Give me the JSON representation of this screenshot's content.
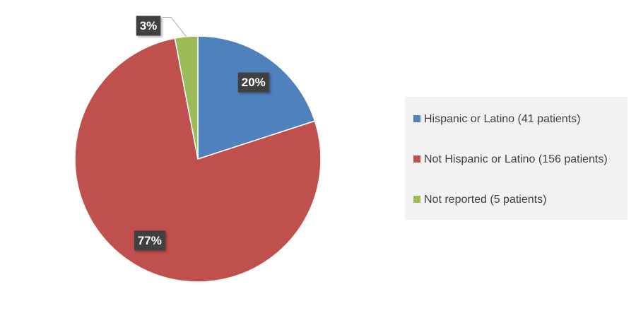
{
  "chart_data": {
    "type": "pie",
    "categories": [
      "Hispanic or Latino (41 patients)",
      "Not Hispanic or Latino (156 patients)",
      "Not reported (5 patients)"
    ],
    "values": [
      20,
      77,
      3
    ],
    "value_labels": [
      "20%",
      "77%",
      "3%"
    ],
    "colors": [
      "#4f81bd",
      "#c0504d",
      "#9bbb59"
    ],
    "legend": "right"
  }
}
